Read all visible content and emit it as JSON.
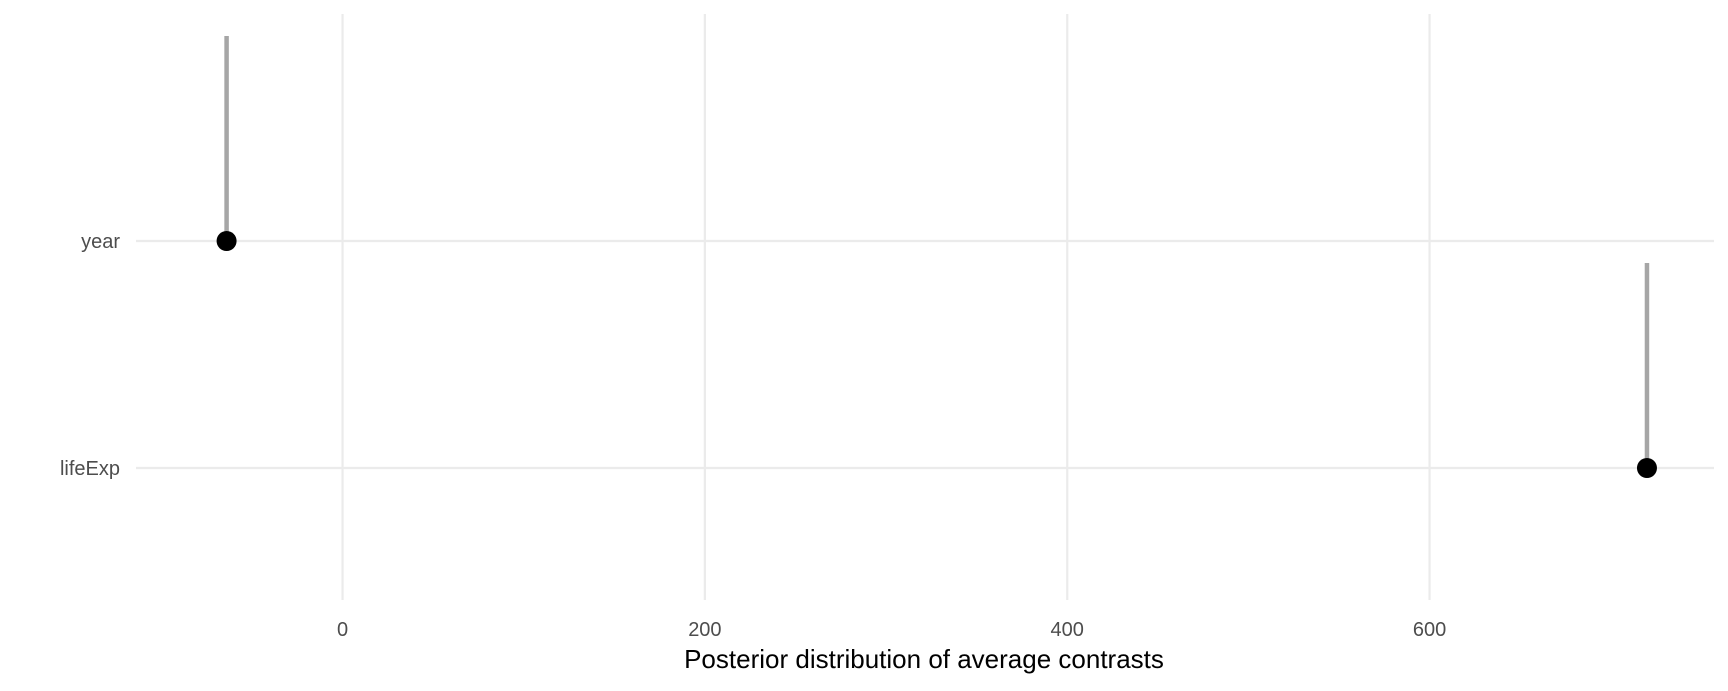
{
  "chart_data": {
    "type": "scatter",
    "title": "",
    "xlabel": "Posterior distribution of average contrasts",
    "ylabel": "",
    "xlim": [
      -114,
      757
    ],
    "x_ticks": [
      0,
      200,
      400,
      600
    ],
    "grid": true,
    "legend": "none",
    "categories": [
      "year",
      "lifeExp"
    ],
    "points": [
      {
        "term": "year",
        "estimate": -64,
        "interval_low": -64,
        "interval_high": -64
      },
      {
        "term": "lifeExp",
        "estimate": 720,
        "interval_low": 720,
        "interval_high": 720
      }
    ],
    "colors": {
      "point": "#000000",
      "interval": "#a6a6a6",
      "grid": "#ebebeb"
    }
  }
}
